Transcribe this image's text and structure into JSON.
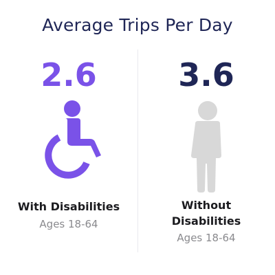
{
  "chart_data": {
    "type": "bar",
    "title": "Average Trips Per Day",
    "categories": [
      "With Disabilities",
      "Without Disabilities"
    ],
    "values": [
      2.6,
      3.6
    ],
    "value_labels": [
      "2.6",
      "3.6"
    ],
    "subtitles": [
      "Ages 18-64",
      "Ages 18-64"
    ],
    "label_lines": {
      "left": [
        "With Disabilities"
      ],
      "right": [
        "Without",
        "Disabilities"
      ]
    },
    "colors": {
      "with_disabilities": "#7a52e8",
      "without_disabilities": "#1f2656",
      "person_icon": "#d8d8d8",
      "title": "#1f2656",
      "subtitle": "#8a8a8e"
    },
    "icons": {
      "left": "wheelchair-icon",
      "right": "person-icon"
    }
  }
}
